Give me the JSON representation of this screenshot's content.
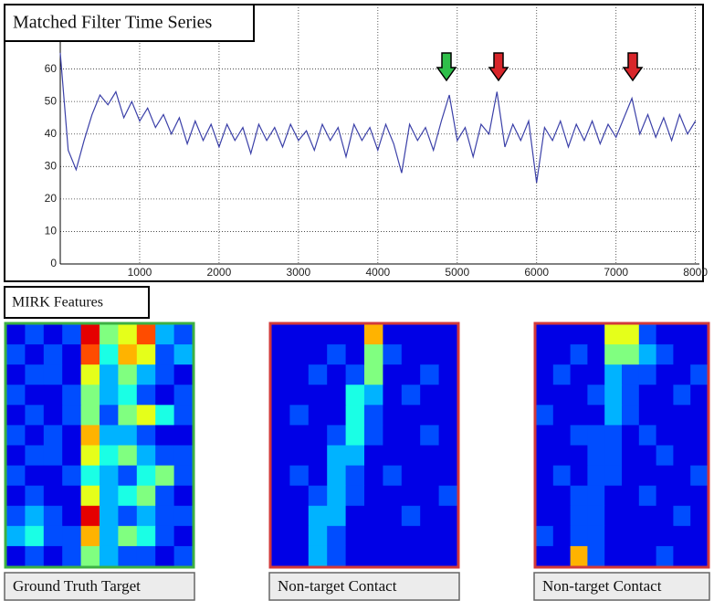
{
  "chart_data": {
    "type": "line",
    "title": "Matched Filter Time Series",
    "x": [
      0,
      100,
      200,
      300,
      400,
      500,
      600,
      700,
      800,
      900,
      1000,
      1100,
      1200,
      1300,
      1400,
      1500,
      1600,
      1700,
      1800,
      1900,
      2000,
      2100,
      2200,
      2300,
      2400,
      2500,
      2600,
      2700,
      2800,
      2900,
      3000,
      3100,
      3200,
      3300,
      3400,
      3500,
      3600,
      3700,
      3800,
      3900,
      4000,
      4100,
      4200,
      4300,
      4400,
      4500,
      4600,
      4700,
      4800,
      4900,
      5000,
      5100,
      5200,
      5300,
      5400,
      5500,
      5600,
      5700,
      5800,
      5900,
      6000,
      6100,
      6200,
      6300,
      6400,
      6500,
      6600,
      6700,
      6800,
      6900,
      7000,
      7100,
      7200,
      7300,
      7400,
      7500,
      7600,
      7700,
      7800,
      7900,
      8000
    ],
    "values": [
      65,
      35,
      29,
      38,
      46,
      52,
      49,
      53,
      45,
      50,
      44,
      48,
      42,
      46,
      40,
      45,
      37,
      44,
      38,
      43,
      36,
      43,
      38,
      42,
      34,
      43,
      38,
      42,
      36,
      43,
      38,
      41,
      35,
      43,
      38,
      42,
      33,
      43,
      38,
      42,
      35,
      43,
      37,
      28,
      43,
      38,
      42,
      35,
      44,
      52,
      38,
      42,
      33,
      43,
      40,
      53,
      36,
      43,
      38,
      44,
      25,
      42,
      38,
      44,
      36,
      43,
      38,
      44,
      37,
      43,
      39,
      45,
      51,
      40,
      46,
      39,
      45,
      38,
      46,
      40,
      44
    ],
    "color": "#3b40a8",
    "xlim": [
      0,
      8050
    ],
    "ylim": [
      0,
      79
    ],
    "xticks": [
      1000,
      2000,
      3000,
      4000,
      5000,
      6000,
      7000,
      8000
    ],
    "yticks": [
      0,
      10,
      20,
      30,
      40,
      50,
      60
    ],
    "grid": true
  },
  "section_label": "MIRK Features",
  "panels": [
    {
      "caption": "Ground Truth Target",
      "border": "#3cb043",
      "cells": [
        [
          1,
          2,
          1,
          2,
          9,
          5,
          6,
          8,
          3,
          2
        ],
        [
          2,
          1,
          2,
          1,
          8,
          4,
          7,
          6,
          2,
          3
        ],
        [
          1,
          2,
          2,
          1,
          6,
          3,
          5,
          3,
          2,
          1
        ],
        [
          2,
          1,
          1,
          2,
          5,
          3,
          4,
          2,
          1,
          2
        ],
        [
          1,
          2,
          1,
          2,
          5,
          2,
          5,
          6,
          4,
          2
        ],
        [
          2,
          1,
          2,
          1,
          7,
          3,
          3,
          2,
          1,
          1
        ],
        [
          1,
          2,
          2,
          1,
          6,
          4,
          5,
          3,
          2,
          2
        ],
        [
          2,
          1,
          1,
          2,
          4,
          3,
          2,
          4,
          5,
          2
        ],
        [
          1,
          2,
          1,
          1,
          6,
          3,
          4,
          5,
          2,
          1
        ],
        [
          2,
          3,
          2,
          1,
          9,
          3,
          2,
          3,
          2,
          2
        ],
        [
          3,
          4,
          2,
          2,
          7,
          3,
          5,
          4,
          2,
          1
        ],
        [
          1,
          2,
          1,
          2,
          5,
          3,
          2,
          2,
          1,
          2
        ]
      ]
    },
    {
      "caption": "Non-target Contact",
      "border": "#d23a3a",
      "cells": [
        [
          1,
          1,
          1,
          1,
          1,
          7,
          1,
          1,
          1,
          1
        ],
        [
          1,
          1,
          1,
          2,
          1,
          5,
          2,
          1,
          1,
          1
        ],
        [
          1,
          1,
          2,
          1,
          2,
          5,
          1,
          1,
          2,
          1
        ],
        [
          1,
          1,
          1,
          1,
          4,
          3,
          1,
          2,
          1,
          1
        ],
        [
          1,
          2,
          1,
          1,
          4,
          2,
          1,
          1,
          1,
          1
        ],
        [
          1,
          1,
          1,
          2,
          4,
          2,
          1,
          1,
          2,
          1
        ],
        [
          1,
          1,
          1,
          3,
          3,
          1,
          1,
          1,
          1,
          1
        ],
        [
          1,
          2,
          1,
          3,
          2,
          1,
          2,
          1,
          1,
          1
        ],
        [
          1,
          1,
          2,
          3,
          2,
          1,
          1,
          1,
          1,
          2
        ],
        [
          1,
          1,
          3,
          3,
          1,
          1,
          1,
          2,
          1,
          1
        ],
        [
          1,
          1,
          3,
          2,
          1,
          1,
          1,
          1,
          1,
          1
        ],
        [
          1,
          1,
          3,
          2,
          1,
          1,
          1,
          1,
          1,
          1
        ]
      ]
    },
    {
      "caption": "Non-target Contact",
      "border": "#d23a3a",
      "cells": [
        [
          1,
          1,
          1,
          1,
          6,
          6,
          2,
          1,
          1,
          1
        ],
        [
          1,
          1,
          2,
          1,
          5,
          5,
          3,
          2,
          1,
          1
        ],
        [
          1,
          2,
          1,
          1,
          3,
          2,
          2,
          1,
          1,
          2
        ],
        [
          1,
          1,
          1,
          2,
          3,
          2,
          1,
          1,
          2,
          1
        ],
        [
          2,
          1,
          1,
          1,
          3,
          2,
          1,
          1,
          1,
          1
        ],
        [
          1,
          1,
          2,
          2,
          2,
          1,
          2,
          1,
          1,
          1
        ],
        [
          1,
          1,
          1,
          2,
          2,
          1,
          1,
          2,
          1,
          1
        ],
        [
          1,
          2,
          1,
          2,
          2,
          1,
          1,
          1,
          1,
          2
        ],
        [
          1,
          1,
          2,
          2,
          1,
          1,
          2,
          1,
          1,
          1
        ],
        [
          1,
          1,
          2,
          2,
          1,
          1,
          1,
          1,
          2,
          1
        ],
        [
          2,
          1,
          2,
          2,
          1,
          1,
          1,
          1,
          1,
          1
        ],
        [
          1,
          1,
          7,
          2,
          1,
          1,
          1,
          2,
          1,
          1
        ]
      ]
    }
  ]
}
